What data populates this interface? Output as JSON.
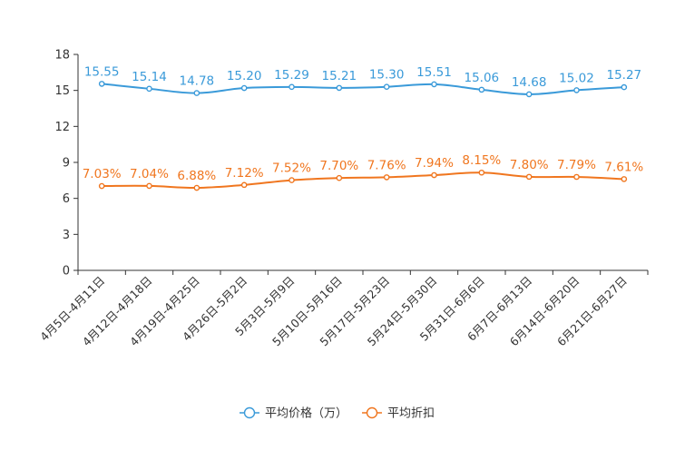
{
  "chart_data": {
    "type": "line",
    "categories": [
      "4月5日-4月11日",
      "4月12日-4月18日",
      "4月19日-4月25日",
      "4月26日-5月2日",
      "5月3日-5月9日",
      "5月10日-5月16日",
      "5月17日-5月23日",
      "5月24日-5月30日",
      "5月31日-6月6日",
      "6月7日-6月13日",
      "6月14日-6月20日",
      "6月21日-6月27日"
    ],
    "series": [
      {
        "name": "平均价格（万）",
        "color": "#3a9ad9",
        "values": [
          15.55,
          15.14,
          14.78,
          15.2,
          15.29,
          15.21,
          15.3,
          15.51,
          15.06,
          14.68,
          15.02,
          15.27
        ],
        "labels": [
          "15.55",
          "15.14",
          "14.78",
          "15.20",
          "15.29",
          "15.21",
          "15.30",
          "15.51",
          "15.06",
          "14.68",
          "15.02",
          "15.27"
        ]
      },
      {
        "name": "平均折扣",
        "color": "#f0761f",
        "values": [
          7.03,
          7.04,
          6.88,
          7.12,
          7.52,
          7.7,
          7.76,
          7.94,
          8.15,
          7.8,
          7.79,
          7.61
        ],
        "labels": [
          "7.03%",
          "7.04%",
          "6.88%",
          "7.12%",
          "7.52%",
          "7.70%",
          "7.76%",
          "7.94%",
          "8.15%",
          "7.80%",
          "7.79%",
          "7.61%"
        ]
      }
    ],
    "title": "",
    "xlabel": "",
    "ylabel": "",
    "ylim": [
      0,
      18
    ],
    "yticks": [
      "0",
      "3",
      "6",
      "9",
      "12",
      "15",
      "18"
    ],
    "ytick_values": [
      0,
      3,
      6,
      9,
      12,
      15,
      18
    ],
    "grid": false,
    "legend": "bottom-center"
  }
}
